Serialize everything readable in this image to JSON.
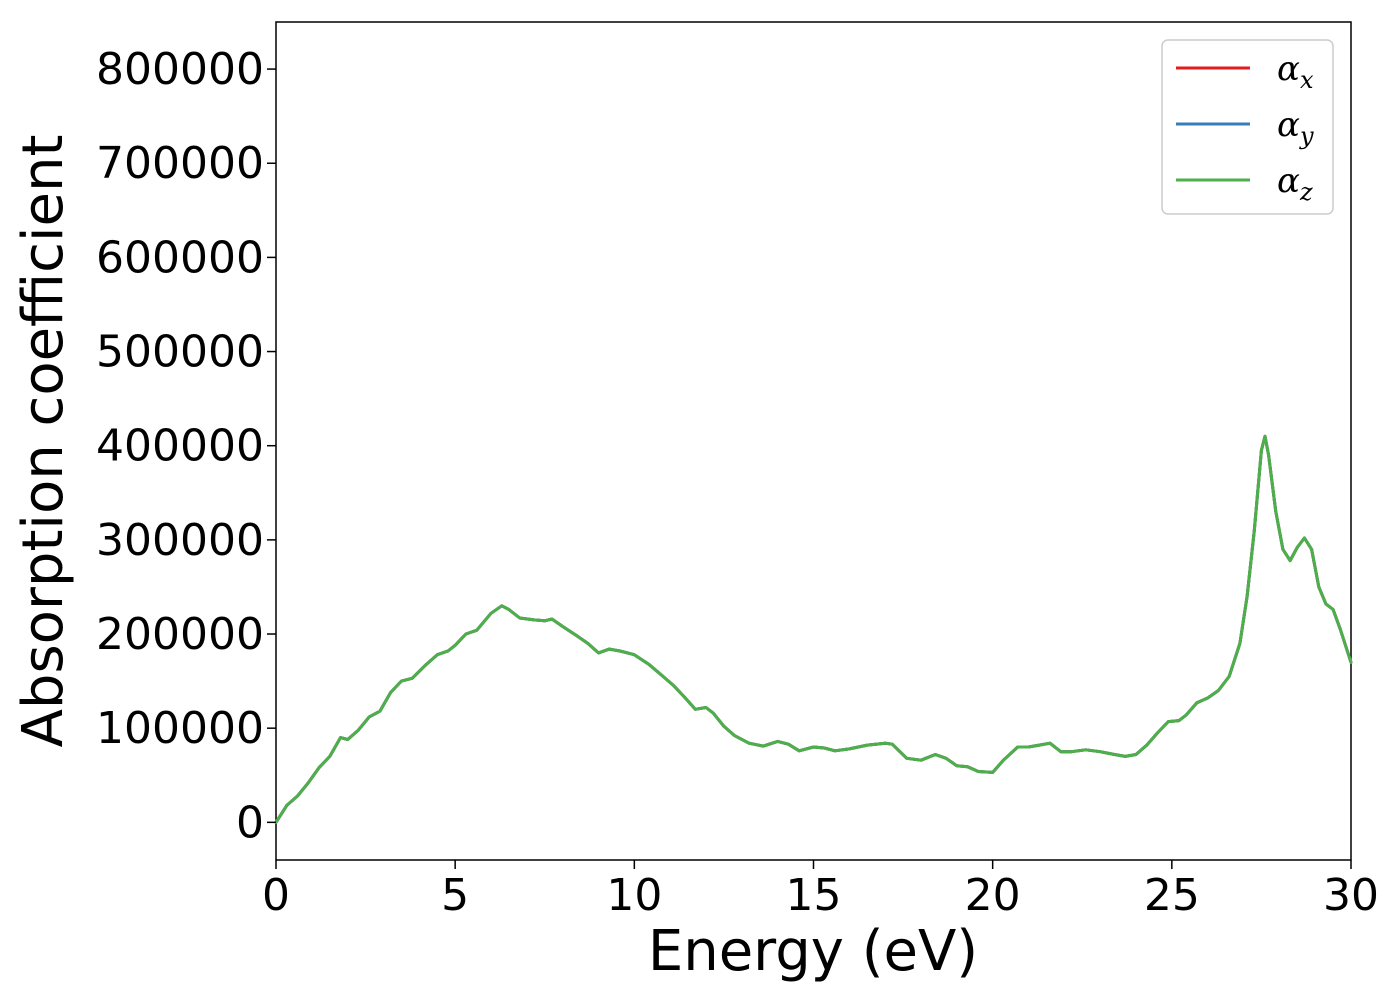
{
  "chart_data": {
    "type": "line",
    "title": "",
    "xlabel": "Energy (eV)",
    "ylabel": "Absorption coefficient",
    "xlim": [
      0,
      30
    ],
    "ylim": [
      -40000,
      850000
    ],
    "xticks": [
      0,
      5,
      10,
      15,
      20,
      25,
      30
    ],
    "yticks": [
      0,
      100000,
      200000,
      300000,
      400000,
      500000,
      600000,
      700000,
      800000
    ],
    "xtick_labels": [
      "0",
      "5",
      "10",
      "15",
      "20",
      "25",
      "30"
    ],
    "ytick_labels": [
      "0",
      "100000",
      "200000",
      "300000",
      "400000",
      "500000",
      "600000",
      "700000",
      "800000"
    ],
    "grid": false,
    "legend_position": "top-right",
    "legend": [
      {
        "base": "α",
        "sub": "x",
        "color": "#e41a1c"
      },
      {
        "base": "α",
        "sub": "y",
        "color": "#377eb8"
      },
      {
        "base": "α",
        "sub": "z",
        "color": "#4daf4a"
      }
    ],
    "x": [
      0,
      0.3,
      0.6,
      0.9,
      1.2,
      1.5,
      1.8,
      2.0,
      2.3,
      2.6,
      2.9,
      3.2,
      3.5,
      3.8,
      4.2,
      4.5,
      4.8,
      5.0,
      5.3,
      5.6,
      6.0,
      6.3,
      6.5,
      6.8,
      7.2,
      7.5,
      7.7,
      8.0,
      8.4,
      8.7,
      9.0,
      9.3,
      9.6,
      10.0,
      10.4,
      10.8,
      11.1,
      11.4,
      11.7,
      12.0,
      12.2,
      12.5,
      12.8,
      13.2,
      13.6,
      14.0,
      14.3,
      14.6,
      15.0,
      15.3,
      15.6,
      16.0,
      16.5,
      17.0,
      17.2,
      17.6,
      18.0,
      18.4,
      18.7,
      19.0,
      19.3,
      19.6,
      20.0,
      20.3,
      20.7,
      21.0,
      21.3,
      21.6,
      21.9,
      22.2,
      22.6,
      23.0,
      23.4,
      23.7,
      24.0,
      24.3,
      24.6,
      24.9,
      25.2,
      25.4,
      25.7,
      26.0,
      26.3,
      26.6,
      26.9,
      27.1,
      27.3,
      27.5,
      27.6,
      27.7,
      27.9,
      28.1,
      28.3,
      28.5,
      28.7,
      28.9,
      29.1,
      29.3,
      29.5,
      29.7,
      30.0
    ],
    "series": [
      {
        "name": "αx",
        "color": "#e41a1c",
        "values": [
          0,
          18000,
          28000,
          42000,
          58000,
          70000,
          90000,
          88000,
          98000,
          112000,
          118000,
          138000,
          150000,
          153000,
          168000,
          178000,
          182000,
          188000,
          200000,
          204000,
          222000,
          230000,
          226000,
          217000,
          215000,
          214000,
          216000,
          208000,
          198000,
          190000,
          180000,
          184000,
          182000,
          178000,
          168000,
          155000,
          145000,
          133000,
          120000,
          122000,
          116000,
          102000,
          92000,
          84000,
          81000,
          86000,
          83000,
          76000,
          80000,
          79000,
          76000,
          78000,
          82000,
          84000,
          83000,
          68000,
          66000,
          72000,
          68000,
          60000,
          59000,
          54000,
          53000,
          66000,
          80000,
          80000,
          82000,
          84000,
          75000,
          75000,
          77000,
          75000,
          72000,
          70000,
          72000,
          82000,
          95000,
          107000,
          108000,
          114000,
          127000,
          132000,
          140000,
          155000,
          190000,
          240000,
          310000,
          395000,
          410000,
          390000,
          330000,
          290000,
          278000,
          292000,
          302000,
          290000,
          250000,
          232000,
          226000,
          205000,
          170000
        ]
      },
      {
        "name": "αy",
        "color": "#377eb8",
        "values": [
          0,
          18000,
          28000,
          42000,
          58000,
          70000,
          90000,
          88000,
          98000,
          112000,
          118000,
          138000,
          150000,
          153000,
          168000,
          178000,
          182000,
          188000,
          200000,
          204000,
          222000,
          230000,
          226000,
          217000,
          215000,
          214000,
          216000,
          208000,
          198000,
          190000,
          180000,
          184000,
          182000,
          178000,
          168000,
          155000,
          145000,
          133000,
          120000,
          122000,
          116000,
          102000,
          92000,
          84000,
          81000,
          86000,
          83000,
          76000,
          80000,
          79000,
          76000,
          78000,
          82000,
          84000,
          83000,
          68000,
          66000,
          72000,
          68000,
          60000,
          59000,
          54000,
          53000,
          66000,
          80000,
          80000,
          82000,
          84000,
          75000,
          75000,
          77000,
          75000,
          72000,
          70000,
          72000,
          82000,
          95000,
          107000,
          108000,
          114000,
          127000,
          132000,
          140000,
          155000,
          190000,
          240000,
          310000,
          395000,
          410000,
          390000,
          330000,
          290000,
          278000,
          292000,
          302000,
          290000,
          250000,
          232000,
          226000,
          205000,
          170000
        ]
      },
      {
        "name": "αz",
        "color": "#4daf4a",
        "values": [
          0,
          18000,
          28000,
          42000,
          58000,
          70000,
          90000,
          88000,
          98000,
          112000,
          118000,
          138000,
          150000,
          153000,
          168000,
          178000,
          182000,
          188000,
          200000,
          204000,
          222000,
          230000,
          226000,
          217000,
          215000,
          214000,
          216000,
          208000,
          198000,
          190000,
          180000,
          184000,
          182000,
          178000,
          168000,
          155000,
          145000,
          133000,
          120000,
          122000,
          116000,
          102000,
          92000,
          84000,
          81000,
          86000,
          83000,
          76000,
          80000,
          79000,
          76000,
          78000,
          82000,
          84000,
          83000,
          68000,
          66000,
          72000,
          68000,
          60000,
          59000,
          54000,
          53000,
          66000,
          80000,
          80000,
          82000,
          84000,
          75000,
          75000,
          77000,
          75000,
          72000,
          70000,
          72000,
          82000,
          95000,
          107000,
          108000,
          114000,
          127000,
          132000,
          140000,
          155000,
          190000,
          240000,
          310000,
          395000,
          410000,
          390000,
          330000,
          290000,
          278000,
          292000,
          302000,
          290000,
          250000,
          232000,
          226000,
          205000,
          170000
        ]
      }
    ]
  }
}
